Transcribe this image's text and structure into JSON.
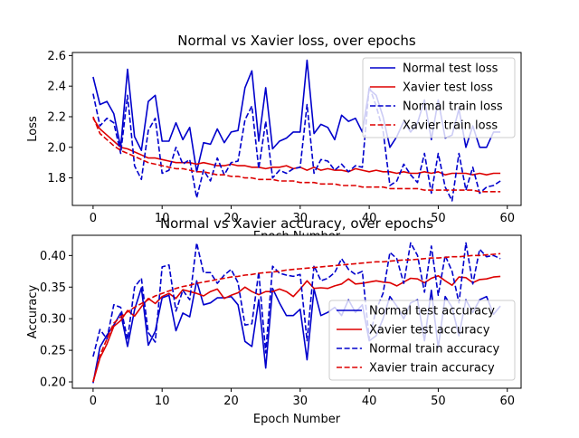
{
  "chart_data": [
    {
      "type": "line",
      "title": "Normal vs Xavier loss, over epochs",
      "xlabel": "Epoch Number",
      "ylabel": "Loss",
      "xlim": [
        -3,
        62
      ],
      "ylim": [
        1.62,
        2.62
      ],
      "xticks": [
        0,
        10,
        20,
        30,
        40,
        50,
        60
      ],
      "yticks": [
        1.8,
        2.0,
        2.2,
        2.4,
        2.6
      ],
      "ytick_labels": [
        "1.8",
        "2.0",
        "2.2",
        "2.4",
        "2.6"
      ],
      "grid": false,
      "legend_position": "top-right",
      "x": [
        0,
        1,
        2,
        3,
        4,
        5,
        6,
        7,
        8,
        9,
        10,
        11,
        12,
        13,
        14,
        15,
        16,
        17,
        18,
        19,
        20,
        21,
        22,
        23,
        24,
        25,
        26,
        27,
        28,
        29,
        30,
        31,
        32,
        33,
        34,
        35,
        36,
        37,
        38,
        39,
        40,
        41,
        42,
        43,
        44,
        45,
        46,
        47,
        48,
        49,
        50,
        51,
        52,
        53,
        54,
        55,
        56,
        57,
        58,
        59
      ],
      "series": [
        {
          "name": "Normal test loss",
          "color": "#0000cc",
          "dash": "solid",
          "values": [
            2.46,
            2.28,
            2.3,
            2.22,
            2.0,
            2.51,
            2.07,
            1.98,
            2.3,
            2.34,
            2.04,
            2.04,
            2.16,
            2.05,
            2.13,
            1.84,
            2.03,
            2.02,
            2.12,
            2.03,
            2.1,
            2.11,
            2.39,
            2.5,
            2.04,
            2.39,
            1.99,
            2.04,
            2.06,
            2.1,
            2.1,
            2.57,
            2.09,
            2.15,
            2.13,
            2.05,
            2.21,
            2.17,
            2.19,
            2.1,
            2.38,
            2.34,
            2.2,
            2.0,
            2.07,
            2.17,
            2.1,
            2.16,
            2.31,
            2.05,
            2.31,
            2.06,
            2.08,
            2.25,
            2.0,
            2.14,
            2.0,
            2.0,
            2.1,
            2.1
          ]
        },
        {
          "name": "Xavier test loss",
          "color": "#dd0000",
          "dash": "solid",
          "values": [
            2.19,
            2.12,
            2.08,
            2.04,
            2.0,
            1.99,
            1.97,
            1.95,
            1.93,
            1.93,
            1.92,
            1.91,
            1.9,
            1.9,
            1.9,
            1.89,
            1.9,
            1.89,
            1.88,
            1.88,
            1.89,
            1.88,
            1.88,
            1.87,
            1.87,
            1.86,
            1.87,
            1.87,
            1.88,
            1.86,
            1.87,
            1.85,
            1.87,
            1.85,
            1.86,
            1.85,
            1.85,
            1.84,
            1.86,
            1.85,
            1.84,
            1.85,
            1.84,
            1.84,
            1.83,
            1.84,
            1.83,
            1.83,
            1.84,
            1.83,
            1.84,
            1.82,
            1.83,
            1.83,
            1.83,
            1.82,
            1.83,
            1.82,
            1.83,
            1.83
          ]
        },
        {
          "name": "Normal train loss",
          "color": "#0000cc",
          "dash": "dashed",
          "values": [
            2.35,
            2.14,
            2.19,
            2.16,
            1.96,
            2.34,
            1.88,
            1.79,
            2.11,
            2.19,
            1.83,
            1.85,
            2.0,
            1.89,
            1.92,
            1.67,
            1.85,
            1.78,
            1.93,
            1.82,
            1.9,
            1.91,
            2.18,
            2.27,
            1.86,
            2.17,
            1.8,
            1.85,
            1.83,
            1.86,
            1.87,
            2.28,
            1.83,
            1.92,
            1.91,
            1.85,
            1.89,
            1.84,
            1.88,
            1.87,
            2.4,
            2.27,
            2.11,
            1.75,
            1.78,
            1.89,
            1.82,
            1.77,
            1.96,
            1.7,
            1.96,
            1.74,
            1.65,
            1.96,
            1.72,
            1.87,
            1.7,
            1.74,
            1.75,
            1.78
          ]
        },
        {
          "name": "Xavier train loss",
          "color": "#dd0000",
          "dash": "dashed",
          "values": [
            2.2,
            2.09,
            2.05,
            2.01,
            1.98,
            1.96,
            1.94,
            1.92,
            1.9,
            1.89,
            1.88,
            1.87,
            1.86,
            1.86,
            1.85,
            1.84,
            1.84,
            1.83,
            1.82,
            1.82,
            1.81,
            1.81,
            1.8,
            1.8,
            1.79,
            1.79,
            1.79,
            1.78,
            1.78,
            1.78,
            1.77,
            1.77,
            1.77,
            1.76,
            1.76,
            1.76,
            1.75,
            1.75,
            1.75,
            1.74,
            1.74,
            1.74,
            1.74,
            1.73,
            1.73,
            1.73,
            1.73,
            1.73,
            1.72,
            1.72,
            1.72,
            1.72,
            1.72,
            1.72,
            1.72,
            1.72,
            1.71,
            1.71,
            1.71,
            1.71
          ]
        }
      ]
    },
    {
      "type": "line",
      "title": "Normal vs Xavier accuracy, over epochs",
      "xlabel": "Epoch Number",
      "ylabel": "Accuracy",
      "xlim": [
        -3,
        62
      ],
      "ylim": [
        0.19,
        0.432
      ],
      "xticks": [
        0,
        10,
        20,
        30,
        40,
        50,
        60
      ],
      "yticks": [
        0.2,
        0.25,
        0.3,
        0.35,
        0.4
      ],
      "ytick_labels": [
        "0.20",
        "0.25",
        "0.30",
        "0.35",
        "0.40"
      ],
      "grid": false,
      "legend_position": "bottom-right",
      "x": [
        0,
        1,
        2,
        3,
        4,
        5,
        6,
        7,
        8,
        9,
        10,
        11,
        12,
        13,
        14,
        15,
        16,
        17,
        18,
        19,
        20,
        21,
        22,
        23,
        24,
        25,
        26,
        27,
        28,
        29,
        30,
        31,
        32,
        33,
        34,
        35,
        36,
        37,
        38,
        39,
        40,
        41,
        42,
        43,
        44,
        45,
        46,
        47,
        48,
        49,
        50,
        51,
        52,
        53,
        54,
        55,
        56,
        57,
        58,
        59
      ],
      "series": [
        {
          "name": "Normal test accuracy",
          "color": "#0000cc",
          "dash": "solid",
          "values": [
            0.198,
            0.255,
            0.274,
            0.29,
            0.309,
            0.256,
            0.314,
            0.349,
            0.258,
            0.28,
            0.333,
            0.337,
            0.281,
            0.309,
            0.303,
            0.36,
            0.322,
            0.325,
            0.333,
            0.333,
            0.335,
            0.322,
            0.264,
            0.256,
            0.33,
            0.222,
            0.348,
            0.325,
            0.305,
            0.305,
            0.315,
            0.235,
            0.347,
            0.305,
            0.31,
            0.318,
            0.305,
            0.33,
            0.31,
            0.322,
            0.265,
            0.273,
            0.3,
            0.335,
            0.32,
            0.3,
            0.325,
            0.33,
            0.265,
            0.345,
            0.254,
            0.335,
            0.318,
            0.273,
            0.33,
            0.31,
            0.33,
            0.335,
            0.307,
            0.32
          ]
        },
        {
          "name": "Xavier test accuracy",
          "color": "#dd0000",
          "dash": "solid",
          "values": [
            0.2,
            0.238,
            0.26,
            0.288,
            0.297,
            0.313,
            0.304,
            0.319,
            0.332,
            0.324,
            0.335,
            0.34,
            0.332,
            0.346,
            0.343,
            0.34,
            0.336,
            0.343,
            0.347,
            0.332,
            0.337,
            0.341,
            0.35,
            0.343,
            0.338,
            0.343,
            0.343,
            0.347,
            0.343,
            0.335,
            0.347,
            0.36,
            0.348,
            0.349,
            0.348,
            0.352,
            0.355,
            0.363,
            0.355,
            0.356,
            0.358,
            0.36,
            0.358,
            0.357,
            0.352,
            0.358,
            0.364,
            0.363,
            0.357,
            0.364,
            0.368,
            0.36,
            0.353,
            0.366,
            0.365,
            0.357,
            0.362,
            0.363,
            0.366,
            0.367
          ]
        },
        {
          "name": "Normal train accuracy",
          "color": "#0000cc",
          "dash": "dashed",
          "values": [
            0.24,
            0.283,
            0.268,
            0.322,
            0.318,
            0.267,
            0.35,
            0.364,
            0.278,
            0.263,
            0.382,
            0.385,
            0.312,
            0.345,
            0.33,
            0.42,
            0.373,
            0.373,
            0.356,
            0.369,
            0.378,
            0.357,
            0.29,
            0.292,
            0.374,
            0.246,
            0.383,
            0.372,
            0.369,
            0.367,
            0.37,
            0.265,
            0.384,
            0.36,
            0.364,
            0.373,
            0.395,
            0.378,
            0.37,
            0.375,
            0.268,
            0.314,
            0.34,
            0.405,
            0.395,
            0.356,
            0.42,
            0.4,
            0.342,
            0.415,
            0.337,
            0.4,
            0.375,
            0.325,
            0.42,
            0.355,
            0.41,
            0.398,
            0.4,
            0.395
          ]
        },
        {
          "name": "Xavier train accuracy",
          "color": "#dd0000",
          "dash": "dashed",
          "values": [
            0.2,
            0.242,
            0.268,
            0.293,
            0.303,
            0.311,
            0.318,
            0.324,
            0.33,
            0.336,
            0.34,
            0.344,
            0.348,
            0.351,
            0.353,
            0.356,
            0.358,
            0.36,
            0.362,
            0.364,
            0.366,
            0.367,
            0.369,
            0.37,
            0.372,
            0.373,
            0.374,
            0.375,
            0.377,
            0.378,
            0.379,
            0.38,
            0.381,
            0.382,
            0.383,
            0.384,
            0.385,
            0.386,
            0.387,
            0.388,
            0.389,
            0.39,
            0.39,
            0.391,
            0.392,
            0.393,
            0.393,
            0.394,
            0.395,
            0.396,
            0.396,
            0.397,
            0.398,
            0.398,
            0.399,
            0.4,
            0.4,
            0.401,
            0.402,
            0.403
          ]
        }
      ]
    }
  ]
}
